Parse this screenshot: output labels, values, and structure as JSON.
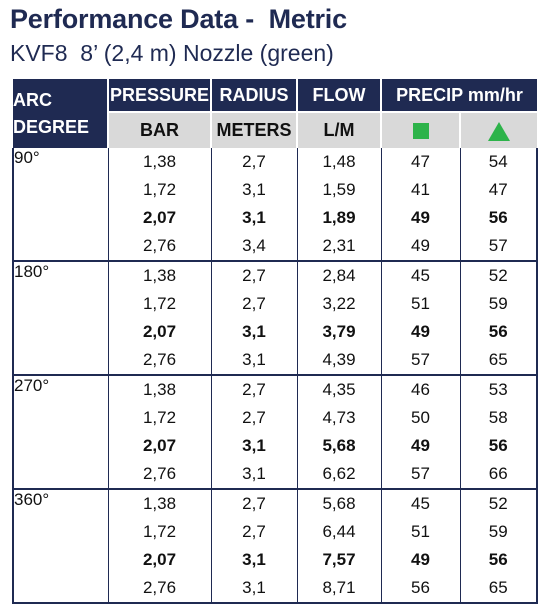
{
  "title": "Performance Data -  Metric",
  "subtitle": "KVF8  8’ (2,4 m) Nozzle (green)",
  "headers": {
    "arc_line1": "ARC",
    "arc_line2": "DEGREE",
    "pressure": "PRESSURE",
    "radius": "RADIUS",
    "flow": "FLOW",
    "precip": "PRECIP mm/hr",
    "unit_bar": "BAR",
    "unit_meters": "METERS",
    "unit_flow": "L/M",
    "precip_square_icon": "green-square-icon",
    "precip_triangle_icon": "green-triangle-icon",
    "icon_color": "#2db34a",
    "header_color": "#1f2a52"
  },
  "groups": [
    {
      "arc": "90°",
      "rows": [
        {
          "pressure": "1,38",
          "radius": "2,7",
          "flow": "1,48",
          "square": "47",
          "triangle": "54",
          "bold": false
        },
        {
          "pressure": "1,72",
          "radius": "3,1",
          "flow": "1,59",
          "square": "41",
          "triangle": "47",
          "bold": false
        },
        {
          "pressure": "2,07",
          "radius": "3,1",
          "flow": "1,89",
          "square": "49",
          "triangle": "56",
          "bold": true
        },
        {
          "pressure": "2,76",
          "radius": "3,4",
          "flow": "2,31",
          "square": "49",
          "triangle": "57",
          "bold": false
        }
      ]
    },
    {
      "arc": "180°",
      "rows": [
        {
          "pressure": "1,38",
          "radius": "2,7",
          "flow": "2,84",
          "square": "45",
          "triangle": "52",
          "bold": false
        },
        {
          "pressure": "1,72",
          "radius": "2,7",
          "flow": "3,22",
          "square": "51",
          "triangle": "59",
          "bold": false
        },
        {
          "pressure": "2,07",
          "radius": "3,1",
          "flow": "3,79",
          "square": "49",
          "triangle": "56",
          "bold": true
        },
        {
          "pressure": "2,76",
          "radius": "3,1",
          "flow": "4,39",
          "square": "57",
          "triangle": "65",
          "bold": false
        }
      ]
    },
    {
      "arc": "270°",
      "rows": [
        {
          "pressure": "1,38",
          "radius": "2,7",
          "flow": "4,35",
          "square": "46",
          "triangle": "53",
          "bold": false
        },
        {
          "pressure": "1,72",
          "radius": "2,7",
          "flow": "4,73",
          "square": "50",
          "triangle": "58",
          "bold": false
        },
        {
          "pressure": "2,07",
          "radius": "3,1",
          "flow": "5,68",
          "square": "49",
          "triangle": "56",
          "bold": true
        },
        {
          "pressure": "2,76",
          "radius": "3,1",
          "flow": "6,62",
          "square": "57",
          "triangle": "66",
          "bold": false
        }
      ]
    },
    {
      "arc": "360°",
      "rows": [
        {
          "pressure": "1,38",
          "radius": "2,7",
          "flow": "5,68",
          "square": "45",
          "triangle": "52",
          "bold": false
        },
        {
          "pressure": "1,72",
          "radius": "2,7",
          "flow": "6,44",
          "square": "51",
          "triangle": "59",
          "bold": false
        },
        {
          "pressure": "2,07",
          "radius": "3,1",
          "flow": "7,57",
          "square": "49",
          "triangle": "56",
          "bold": true
        },
        {
          "pressure": "2,76",
          "radius": "3,1",
          "flow": "8,71",
          "square": "56",
          "triangle": "65",
          "bold": false
        }
      ]
    }
  ]
}
